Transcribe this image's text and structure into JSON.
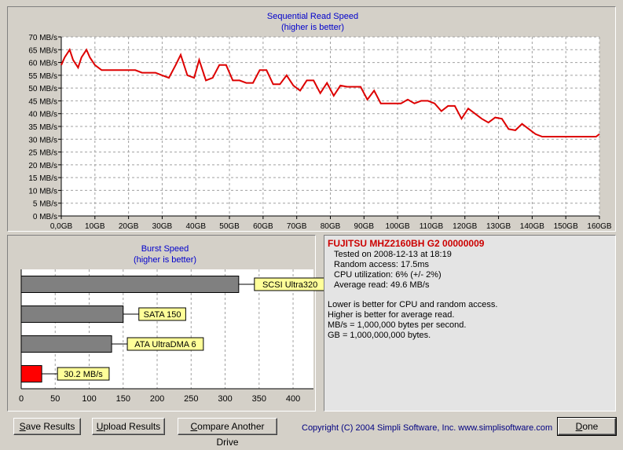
{
  "chart_data": [
    {
      "type": "line",
      "title": "Sequential Read Speed",
      "subtitle": "(higher is better)",
      "ylim": [
        0,
        70
      ],
      "yticks": [
        0,
        5,
        10,
        15,
        20,
        25,
        30,
        35,
        40,
        45,
        50,
        55,
        60,
        65,
        70
      ],
      "ytick_labels": [
        "0 MB/s",
        "5 MB/s",
        "10 MB/s",
        "15 MB/s",
        "20 MB/s",
        "25 MB/s",
        "30 MB/s",
        "35 MB/s",
        "40 MB/s",
        "45 MB/s",
        "50 MB/s",
        "55 MB/s",
        "60 MB/s",
        "65 MB/s",
        "70 MB/s"
      ],
      "xlim": [
        0,
        160
      ],
      "xticks": [
        0,
        10,
        20,
        30,
        40,
        50,
        60,
        70,
        80,
        90,
        100,
        110,
        120,
        130,
        140,
        150,
        160
      ],
      "xtick_labels": [
        "0,0GB",
        "10GB",
        "20GB",
        "30GB",
        "40GB",
        "50GB",
        "60GB",
        "70GB",
        "80GB",
        "90GB",
        "100GB",
        "110GB",
        "120GB",
        "130GB",
        "140GB",
        "150GB",
        "160GB"
      ],
      "grid": true,
      "color": "#dd0000",
      "series": [
        {
          "x": [
            0,
            1,
            2.5,
            3.5,
            5,
            6,
            7.5,
            8.5,
            10,
            12,
            14,
            16,
            18,
            20,
            22,
            24,
            26,
            28,
            30,
            32,
            34,
            35.5,
            37.5,
            39.5,
            41,
            43,
            45,
            47,
            49,
            51,
            53,
            55,
            57,
            59,
            61,
            63,
            65,
            67,
            69,
            71,
            73,
            75,
            77,
            79,
            81,
            83,
            85,
            87,
            89,
            91,
            93,
            95,
            97,
            99,
            101,
            103,
            105,
            107,
            109,
            111,
            113,
            115,
            117,
            119,
            121,
            123,
            125,
            127,
            129,
            131,
            133,
            135,
            137,
            139,
            141,
            143,
            145,
            147,
            149,
            151,
            153,
            155,
            157,
            159,
            160
          ],
          "y": [
            59,
            62,
            65,
            61,
            58,
            62,
            65,
            62,
            59,
            57,
            57,
            57,
            57,
            57,
            57,
            56,
            56,
            56,
            55,
            54,
            59,
            63,
            55,
            54,
            61,
            53,
            54,
            59,
            59,
            53,
            53,
            52,
            52,
            57,
            57,
            51.5,
            51.5,
            55,
            51,
            49,
            53,
            53,
            48,
            52,
            47,
            51,
            50.5,
            50.5,
            50.5,
            45.5,
            49,
            44,
            44,
            44,
            44,
            45.5,
            44,
            45,
            45,
            44,
            41,
            43,
            43,
            38,
            42,
            40,
            38,
            36.5,
            38.5,
            38,
            34,
            33.5,
            36,
            34,
            32,
            31,
            31,
            31,
            31,
            31,
            31,
            31,
            31,
            31,
            32
          ]
        }
      ]
    },
    {
      "type": "bar",
      "orientation": "horizontal",
      "title": "Burst Speed",
      "subtitle": "(higher is better)",
      "xlim": [
        0,
        430
      ],
      "xticks": [
        0,
        50,
        100,
        150,
        200,
        250,
        300,
        350,
        400
      ],
      "categories": [
        "SCSI Ultra320",
        "SATA 150",
        "ATA UltraDMA 6",
        "30.2 MB/s"
      ],
      "values": [
        320,
        150,
        133,
        30.2
      ],
      "colors": [
        "#808080",
        "#808080",
        "#808080",
        "#ff0000"
      ]
    }
  ],
  "drive": {
    "name": "FUJITSU MHZ2160BH G2 00000009",
    "tested_on": "Tested on 2008-12-13 at 18:19",
    "random_access": "Random access: 17.5ms",
    "cpu": "CPU utilization: 6% (+/- 2%)",
    "avg_read": "Average read: 49.6 MB/s"
  },
  "notes": [
    "Lower is better for CPU and random access.",
    "Higher is better for average read.",
    "MB/s = 1,000,000 bytes per second.",
    "GB = 1,000,000,000 bytes."
  ],
  "buttons": {
    "save_u": "S",
    "save_rest": "ave Results",
    "upload_u": "U",
    "upload_rest": "pload Results",
    "compare_u": "C",
    "compare_rest": "ompare Another Drive",
    "done_u": "D",
    "done_rest": "one"
  },
  "copyright": "Copyright (C) 2004 Simpli Software, Inc. www.simplisoftware.com"
}
